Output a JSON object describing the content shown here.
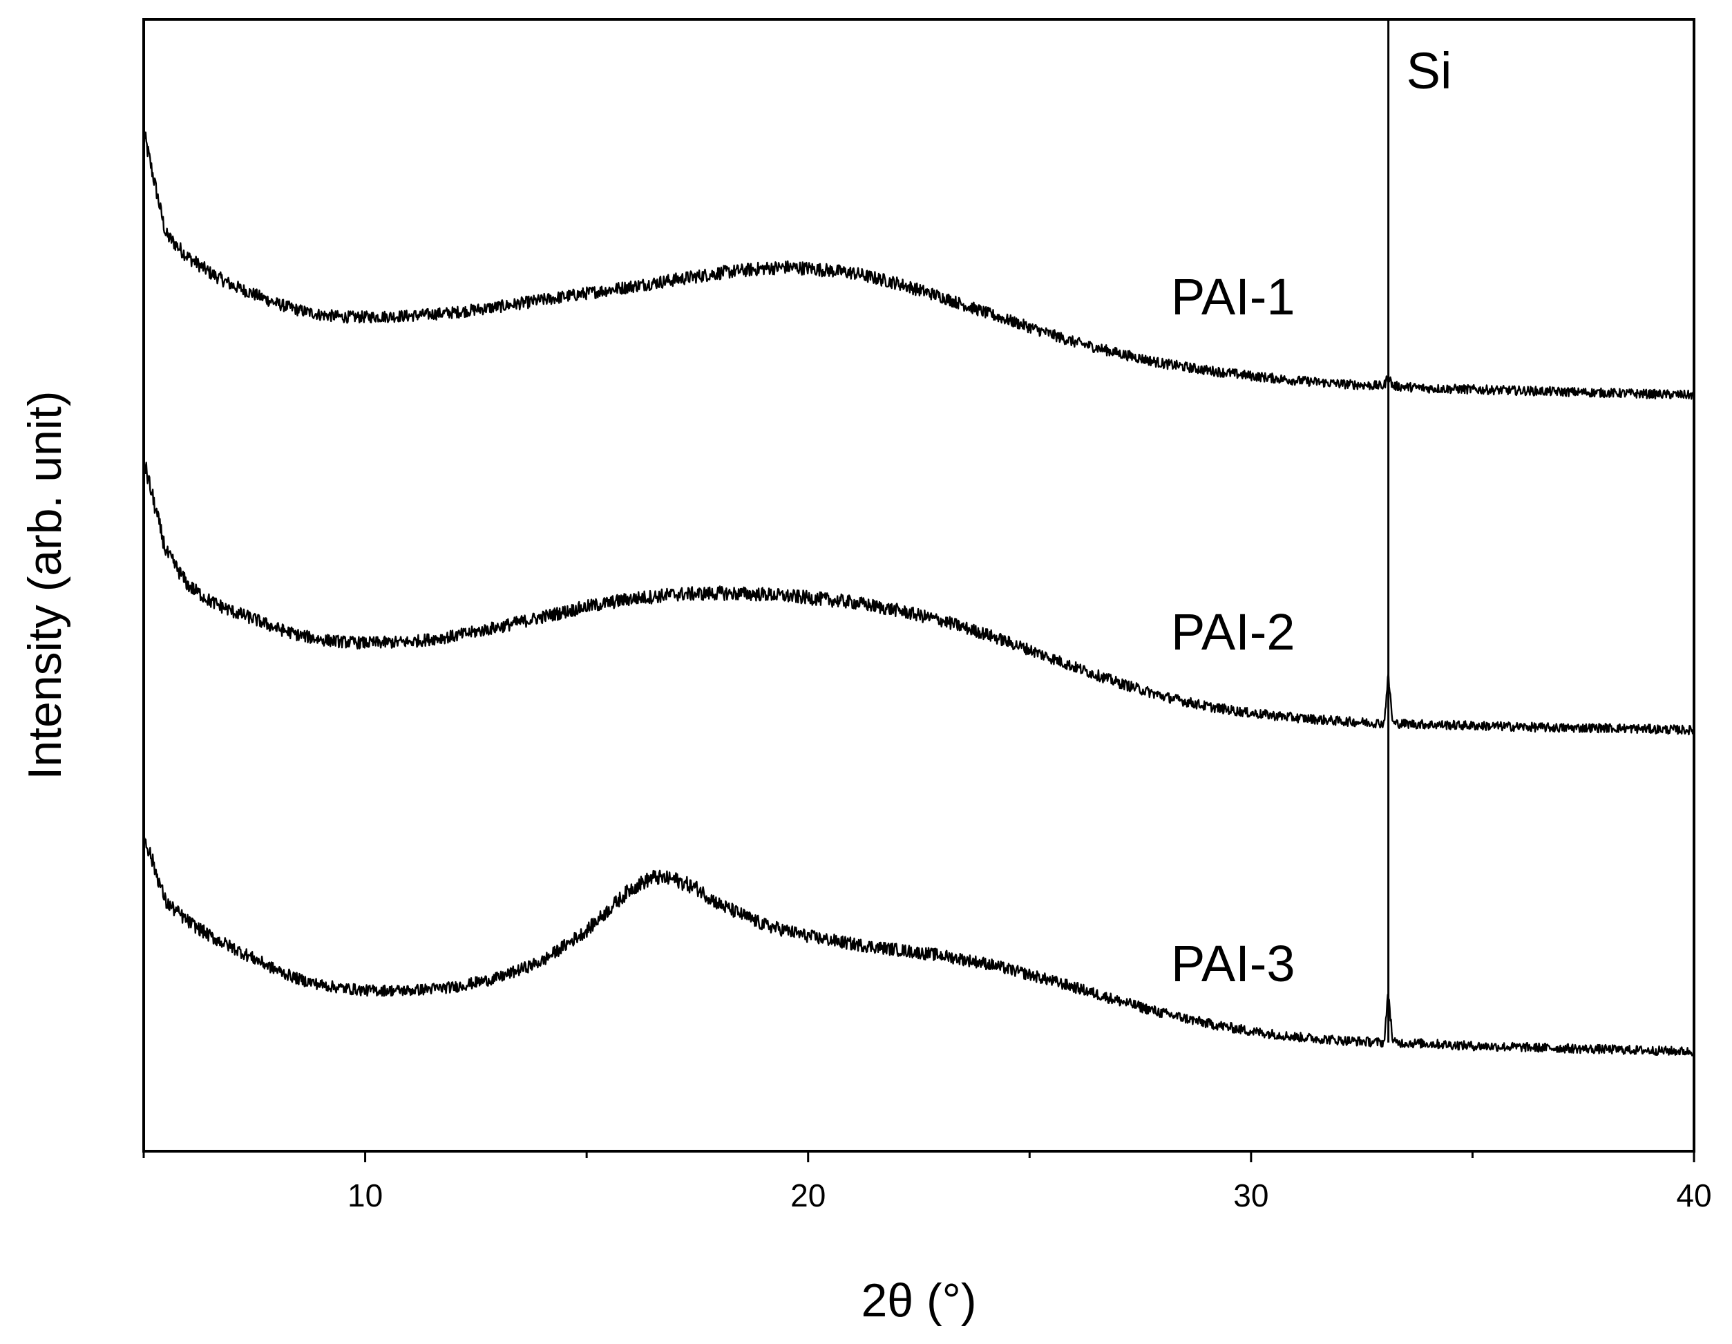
{
  "chart_data": {
    "type": "line",
    "title": "",
    "xlabel": "2θ (°)",
    "ylabel": "Intensity (arb. unit)",
    "xlim": [
      5,
      40
    ],
    "ylim": [
      0,
      1
    ],
    "x_major_ticks": [
      10,
      20,
      30,
      40
    ],
    "x_minor_ticks": [
      5,
      15,
      25,
      35
    ],
    "y_ticks_shown": false,
    "grid": false,
    "legend": "none",
    "line_color": "#000000",
    "reference_line": {
      "label": "Si",
      "x": 33.1
    },
    "series": [
      {
        "name": "PAI-1",
        "x": [
          5,
          5.5,
          6,
          6.5,
          7,
          7.5,
          8,
          8.5,
          9,
          9.5,
          10,
          11,
          12,
          13,
          14,
          15,
          16,
          17,
          18,
          19,
          19.5,
          20,
          21,
          22,
          23,
          24,
          25,
          26,
          27,
          28,
          29,
          30,
          31,
          32,
          33,
          33.1,
          33.2,
          34,
          35,
          36,
          37,
          38,
          39,
          40
        ],
        "y": [
          0.9,
          0.81,
          0.79,
          0.776,
          0.765,
          0.757,
          0.749,
          0.743,
          0.739,
          0.737,
          0.737,
          0.738,
          0.741,
          0.746,
          0.752,
          0.758,
          0.764,
          0.77,
          0.776,
          0.78,
          0.781,
          0.78,
          0.776,
          0.767,
          0.755,
          0.741,
          0.728,
          0.715,
          0.705,
          0.696,
          0.69,
          0.685,
          0.681,
          0.678,
          0.676,
          0.685,
          0.676,
          0.674,
          0.673,
          0.672,
          0.671,
          0.67,
          0.669,
          0.668
        ]
      },
      {
        "name": "PAI-2",
        "x": [
          5,
          5.5,
          6,
          6.5,
          7,
          7.5,
          8,
          8.5,
          9,
          9.5,
          10,
          11,
          12,
          13,
          14,
          15,
          16,
          17,
          18,
          19,
          20,
          21,
          22,
          23,
          24,
          25,
          26,
          27,
          28,
          29,
          30,
          31,
          32,
          33,
          33.1,
          33.2,
          34,
          35,
          36,
          37,
          38,
          39,
          40
        ],
        "y": [
          0.61,
          0.53,
          0.5,
          0.486,
          0.477,
          0.47,
          0.462,
          0.456,
          0.452,
          0.45,
          0.449,
          0.45,
          0.455,
          0.463,
          0.472,
          0.481,
          0.488,
          0.492,
          0.493,
          0.492,
          0.489,
          0.485,
          0.478,
          0.469,
          0.457,
          0.443,
          0.428,
          0.414,
          0.402,
          0.393,
          0.387,
          0.383,
          0.38,
          0.378,
          0.42,
          0.378,
          0.377,
          0.376,
          0.375,
          0.374,
          0.374,
          0.373,
          0.372
        ]
      },
      {
        "name": "PAI-3",
        "x": [
          5,
          5.5,
          6,
          6.5,
          7,
          7.5,
          8,
          8.5,
          9,
          9.5,
          10,
          11,
          12,
          13,
          14,
          15,
          16,
          16.5,
          17,
          17.5,
          18,
          19,
          20,
          21,
          22,
          23,
          24,
          25,
          26,
          27,
          28,
          29,
          30,
          31,
          32,
          33,
          33.1,
          33.2,
          34,
          35,
          36,
          37,
          38,
          39,
          40
        ],
        "y": [
          0.28,
          0.22,
          0.203,
          0.19,
          0.18,
          0.17,
          0.16,
          0.152,
          0.147,
          0.144,
          0.142,
          0.142,
          0.145,
          0.153,
          0.168,
          0.195,
          0.232,
          0.242,
          0.24,
          0.232,
          0.218,
          0.2,
          0.19,
          0.183,
          0.178,
          0.173,
          0.166,
          0.156,
          0.145,
          0.133,
          0.122,
          0.113,
          0.106,
          0.101,
          0.098,
          0.096,
          0.14,
          0.096,
          0.095,
          0.093,
          0.092,
          0.091,
          0.09,
          0.089,
          0.088
        ]
      }
    ]
  }
}
